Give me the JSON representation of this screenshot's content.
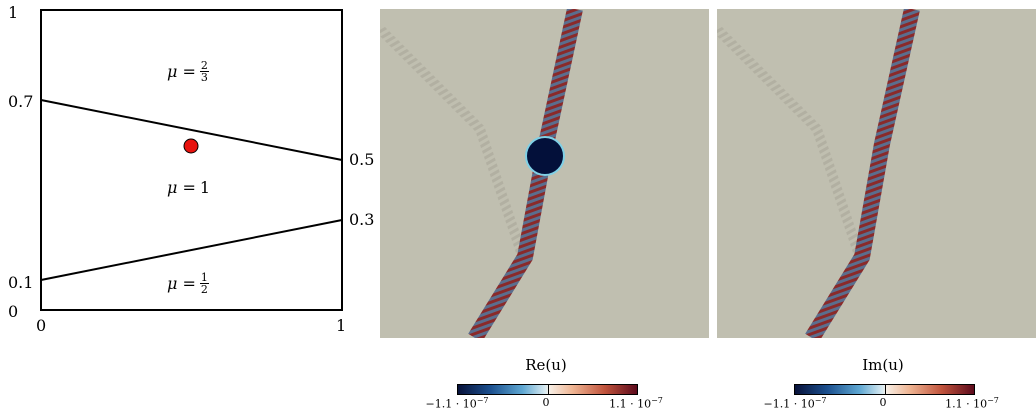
{
  "domain_diagram": {
    "axis_x": {
      "min_label": "0",
      "max_label": "1"
    },
    "axis_y": {
      "bottom_label": "0",
      "top_label": "1"
    },
    "left_ticks": [
      "0.7",
      "0.1"
    ],
    "right_ticks": [
      "0.5",
      "0.3"
    ],
    "regions": [
      {
        "mu": "μ =",
        "value_num": "2",
        "value_den": "3"
      },
      {
        "mu": "μ =",
        "value": "1"
      },
      {
        "mu": "μ =",
        "value_num": "1",
        "value_den": "2"
      }
    ],
    "source_color": "#e8120e",
    "line_color": "#000000"
  },
  "panels": [
    {
      "title": "Re(u)",
      "min": "−1.1 · 10",
      "min_exp": "−7",
      "mid": "0",
      "max": "1.1 · 10",
      "max_exp": "−7"
    },
    {
      "title": "Im(u)",
      "min": "−1.1 · 10",
      "min_exp": "−7",
      "mid": "0",
      "max": "1.1 · 10",
      "max_exp": "−7"
    }
  ],
  "colormap": {
    "low": "#08123a",
    "mid": "#f2efe8",
    "high": "#5c0a1c",
    "background": "#c0bfb0"
  }
}
